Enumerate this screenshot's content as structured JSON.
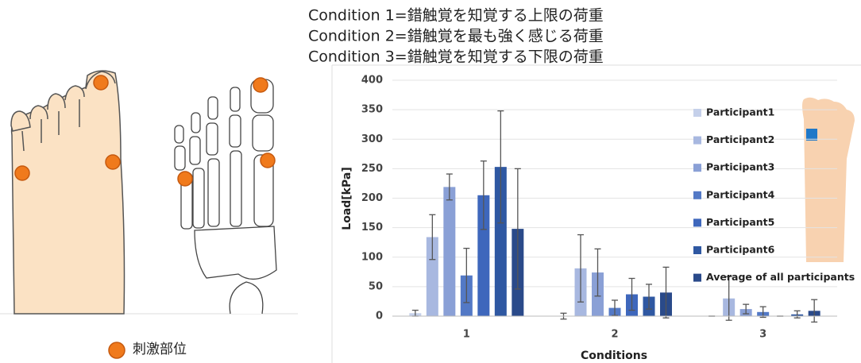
{
  "header": {
    "lines": [
      "Condition 1=錯触覚を知覚する上限の荷重",
      "Condition 2=錯触覚を最も強く感じる荷重",
      "Condition 3=錯触覚を知覚する下限の荷重"
    ]
  },
  "illustration": {
    "legend_label": "刺激部位"
  },
  "chart_data": {
    "type": "bar",
    "x_label": "Conditions",
    "y_label": "Load[kPa]",
    "categories": [
      "1",
      "2",
      "3"
    ],
    "series": [
      {
        "name": "Participant1",
        "color": "#c5d0ea",
        "values": [
          5,
          0,
          0
        ],
        "errors": [
          5,
          5,
          0
        ]
      },
      {
        "name": "Participant2",
        "color": "#a8b8e0",
        "values": [
          134,
          81,
          30
        ],
        "errors": [
          38,
          57,
          37
        ]
      },
      {
        "name": "Participant3",
        "color": "#8aa0d6",
        "values": [
          219,
          74,
          12
        ],
        "errors": [
          22,
          40,
          8
        ]
      },
      {
        "name": "Participant4",
        "color": "#5379c6",
        "values": [
          69,
          14,
          7
        ],
        "errors": [
          46,
          13,
          9
        ]
      },
      {
        "name": "Participant5",
        "color": "#3e67bc",
        "values": [
          205,
          37,
          0
        ],
        "errors": [
          58,
          27,
          0
        ]
      },
      {
        "name": "Participant6",
        "color": "#2f58a2",
        "values": [
          253,
          33,
          3
        ],
        "errors": [
          95,
          21,
          6
        ]
      },
      {
        "name": "Average of all participants",
        "color": "#2a4a8a",
        "values": [
          148,
          40,
          9
        ],
        "errors": [
          102,
          43,
          19
        ]
      }
    ],
    "ylim": [
      0,
      400
    ],
    "yticks": [
      0,
      50,
      100,
      150,
      200,
      250,
      300,
      350,
      400
    ],
    "grid": true
  }
}
